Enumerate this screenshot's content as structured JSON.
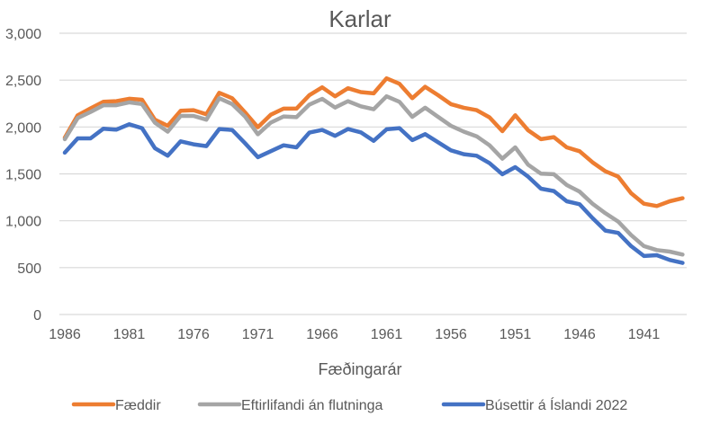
{
  "chart_data": {
    "type": "line",
    "title": "Karlar",
    "xlabel": "Fæðingarár",
    "ylabel": "",
    "ylim": [
      0,
      3000
    ],
    "yticks": [
      0,
      500,
      1000,
      1500,
      2000,
      2500,
      3000
    ],
    "ytick_labels": [
      "0",
      "500",
      "1,000",
      "1,500",
      "2,000",
      "2,500",
      "3,000"
    ],
    "xtick_labels": [
      "1986",
      "1981",
      "1976",
      "1971",
      "1966",
      "1961",
      "1956",
      "1951",
      "1946",
      "1941"
    ],
    "x_reversed": true,
    "grid": true,
    "legend": "bottom",
    "x": [
      1986,
      1985,
      1984,
      1983,
      1982,
      1981,
      1980,
      1979,
      1978,
      1977,
      1976,
      1975,
      1974,
      1973,
      1972,
      1971,
      1970,
      1969,
      1968,
      1967,
      1966,
      1965,
      1964,
      1963,
      1962,
      1961,
      1960,
      1959,
      1958,
      1957,
      1956,
      1955,
      1954,
      1953,
      1952,
      1951,
      1950,
      1949,
      1948,
      1947,
      1946,
      1945,
      1944,
      1943,
      1942,
      1941,
      1940,
      1939,
      1938
    ],
    "series": [
      {
        "name": "Fæddir",
        "color": "#ED7D31",
        "values": [
          1886,
          2125,
          2199,
          2269,
          2275,
          2301,
          2291,
          2078,
          2013,
          2173,
          2180,
          2135,
          2365,
          2307,
          2157,
          1997,
          2131,
          2196,
          2196,
          2340,
          2423,
          2327,
          2413,
          2372,
          2359,
          2519,
          2461,
          2307,
          2429,
          2340,
          2244,
          2205,
          2180,
          2103,
          1955,
          2125,
          1965,
          1870,
          1892,
          1783,
          1742,
          1624,
          1528,
          1470,
          1294,
          1182,
          1157,
          1208,
          1240
        ]
      },
      {
        "name": "Eftirlifandi án flutninga",
        "color": "#A5A5A5",
        "values": [
          1870,
          2095,
          2160,
          2232,
          2232,
          2263,
          2245,
          2046,
          1950,
          2118,
          2118,
          2078,
          2307,
          2245,
          2112,
          1923,
          2046,
          2112,
          2105,
          2239,
          2300,
          2207,
          2275,
          2221,
          2189,
          2327,
          2269,
          2109,
          2205,
          2109,
          2013,
          1950,
          1901,
          1805,
          1662,
          1783,
          1598,
          1502,
          1496,
          1381,
          1310,
          1182,
          1080,
          991,
          847,
          729,
          687,
          671,
          639
        ]
      },
      {
        "name": "Búsettir á Íslandi 2022",
        "color": "#4472C4",
        "values": [
          1726,
          1879,
          1879,
          1982,
          1972,
          2029,
          1988,
          1774,
          1694,
          1847,
          1815,
          1796,
          1978,
          1969,
          1828,
          1678,
          1742,
          1805,
          1783,
          1940,
          1969,
          1905,
          1978,
          1943,
          1853,
          1975,
          1988,
          1860,
          1924,
          1837,
          1751,
          1710,
          1694,
          1614,
          1496,
          1572,
          1470,
          1342,
          1317,
          1208,
          1176,
          1029,
          895,
          870,
          729,
          624,
          633,
          582,
          550
        ]
      }
    ]
  }
}
